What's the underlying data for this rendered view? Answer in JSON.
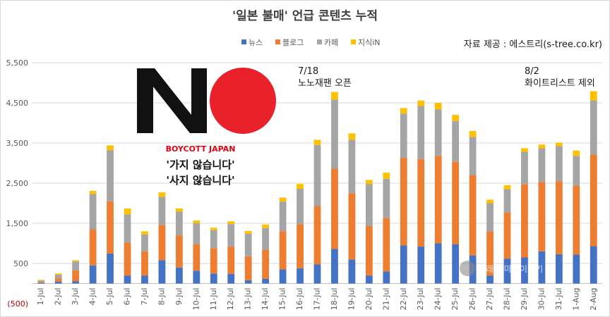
{
  "chart_data": {
    "type": "bar",
    "stacked": true,
    "title": "'일본 불매' 언급 콘텐츠 누적",
    "source": "자료 제공 : 에스트리(s-tree.co.kr)",
    "categories": [
      "1-Jul",
      "2-Jul",
      "3-Jul",
      "4-Jul",
      "5-Jul",
      "6-Jul",
      "7-Jul",
      "8-Jul",
      "9-Jul",
      "10-Jul",
      "11-Jul",
      "12-Jul",
      "13-Jul",
      "14-Jul",
      "15-Jul",
      "16-Jul",
      "17-Jul",
      "18-Jul",
      "19-Jul",
      "20-Jul",
      "21-Jul",
      "22-Jul",
      "23-Jul",
      "24-Jul",
      "25-Jul",
      "26-Jul",
      "27-Jul",
      "28-Jul",
      "29-Jul",
      "30-Jul",
      "31-Jul",
      "1-Aug",
      "2-Aug"
    ],
    "yticks": [
      "(500)",
      "500",
      "1,500",
      "2,500",
      "3,500",
      "4,500",
      "5,500"
    ],
    "ylim": [
      -500,
      5500
    ],
    "series": [
      {
        "name": "뉴스",
        "color": "#4472c4",
        "values": [
          20,
          50,
          60,
          450,
          750,
          200,
          200,
          580,
          400,
          320,
          250,
          240,
          80,
          120,
          350,
          380,
          480,
          860,
          600,
          200,
          300,
          950,
          920,
          1000,
          980,
          700,
          200,
          620,
          650,
          800,
          730,
          720,
          930
        ]
      },
      {
        "name": "블로그",
        "color": "#ed7d31",
        "values": [
          20,
          80,
          270,
          900,
          1300,
          820,
          600,
          880,
          800,
          660,
          630,
          680,
          600,
          720,
          950,
          1100,
          1450,
          2000,
          1650,
          1230,
          1330,
          2180,
          2180,
          2180,
          2050,
          2000,
          1100,
          1150,
          1820,
          1730,
          1820,
          1720,
          2280
        ]
      },
      {
        "name": "카페",
        "color": "#a5a5a5",
        "values": [
          30,
          90,
          220,
          880,
          1270,
          700,
          420,
          700,
          590,
          520,
          450,
          560,
          560,
          540,
          740,
          880,
          1520,
          1720,
          1330,
          1050,
          980,
          1100,
          1320,
          1160,
          1020,
          950,
          700,
          580,
          810,
          840,
          870,
          740,
          1350
        ]
      },
      {
        "name": "지식iN",
        "color": "#ffc000",
        "values": [
          20,
          30,
          30,
          80,
          120,
          150,
          80,
          110,
          80,
          70,
          60,
          70,
          70,
          90,
          100,
          120,
          130,
          190,
          160,
          100,
          150,
          140,
          140,
          160,
          150,
          150,
          90,
          100,
          90,
          90,
          90,
          130,
          230
        ]
      }
    ],
    "legend_position": "top"
  },
  "annotations": [
    {
      "line1": "7/18",
      "line2": "노노재팬 오픈"
    },
    {
      "line1": "8/2",
      "line2": "화이트리스트 제외"
    }
  ],
  "logo": {
    "text": "NO"
  },
  "boycott_label": "BOYCOTT JAPAN",
  "slogan": [
    "'가지 않습니다'",
    "'사지 않습니다'"
  ],
  "watermark": "신래의 마곡이야기",
  "colors": {
    "red_circle": "#e8212a",
    "logo_black": "#111111"
  }
}
